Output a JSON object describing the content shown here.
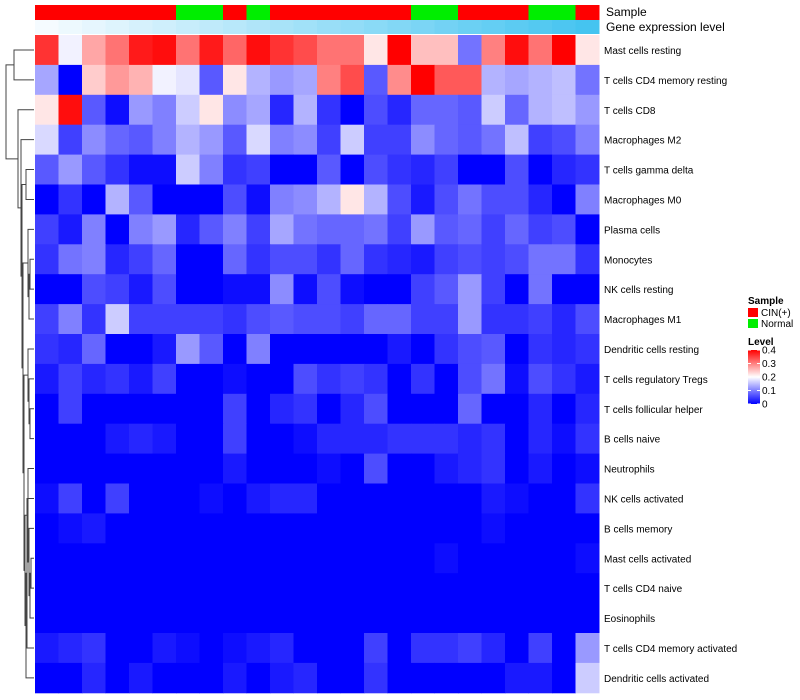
{
  "chart_data": {
    "type": "heatmap",
    "annotation_tracks": [
      "Sample",
      "Gene expression level"
    ],
    "rows": [
      "Mast cells resting",
      "T cells CD4 memory resting",
      "T cells CD8",
      "Macrophages M2",
      "T cells gamma delta",
      "Macrophages M0",
      "Plasma cells",
      "Monocytes",
      "NK cells resting",
      "Macrophages M1",
      "Dendritic cells resting",
      "T cells regulatory  Tregs",
      "T cells follicular helper",
      "B cells naive",
      "Neutrophils",
      "NK cells activated",
      "B cells memory",
      "Mast cells activated",
      "T cells CD4 naive",
      "Eosinophils",
      "T cells CD4 memory activated",
      "Dendritic cells activated"
    ],
    "sample_groups": [
      "CIN(+)",
      "CIN(+)",
      "CIN(+)",
      "CIN(+)",
      "CIN(+)",
      "CIN(+)",
      "Normal",
      "Normal",
      "CIN(+)",
      "Normal",
      "CIN(+)",
      "CIN(+)",
      "CIN(+)",
      "CIN(+)",
      "CIN(+)",
      "CIN(+)",
      "Normal",
      "Normal",
      "CIN(+)",
      "CIN(+)",
      "CIN(+)",
      "Normal",
      "Normal",
      "CIN(+)"
    ],
    "sample_colors": {
      "CIN(+)": "#ff0000",
      "Normal": "#00ee00"
    },
    "expression_gradient": {
      "low": "#f5fbff",
      "high": "#45c4f0"
    },
    "values": [
      [
        0.36,
        0.19,
        0.27,
        0.31,
        0.38,
        0.39,
        0.31,
        0.38,
        0.32,
        0.39,
        0.36,
        0.34,
        0.31,
        0.31,
        0.22,
        0.4,
        0.25,
        0.25,
        0.09,
        0.3,
        0.39,
        0.31,
        0.4,
        0.22
      ],
      [
        0.13,
        0.0,
        0.24,
        0.28,
        0.26,
        0.19,
        0.18,
        0.07,
        0.22,
        0.14,
        0.12,
        0.13,
        0.3,
        0.34,
        0.07,
        0.29,
        0.4,
        0.33,
        0.33,
        0.14,
        0.13,
        0.14,
        0.15,
        0.09
      ],
      [
        0.22,
        0.39,
        0.07,
        0.01,
        0.12,
        0.1,
        0.16,
        0.22,
        0.11,
        0.13,
        0.03,
        0.14,
        0.04,
        0.0,
        0.06,
        0.03,
        0.08,
        0.08,
        0.07,
        0.16,
        0.08,
        0.14,
        0.15,
        0.12
      ],
      [
        0.17,
        0.05,
        0.11,
        0.08,
        0.07,
        0.1,
        0.14,
        0.12,
        0.07,
        0.17,
        0.1,
        0.11,
        0.05,
        0.16,
        0.05,
        0.05,
        0.11,
        0.08,
        0.07,
        0.09,
        0.15,
        0.05,
        0.06,
        0.1
      ],
      [
        0.07,
        0.12,
        0.07,
        0.04,
        0.01,
        0.01,
        0.16,
        0.1,
        0.04,
        0.05,
        0.0,
        0.0,
        0.07,
        0.0,
        0.06,
        0.04,
        0.03,
        0.05,
        0.0,
        0.0,
        0.06,
        0.0,
        0.03,
        0.04
      ],
      [
        0.0,
        0.04,
        0.0,
        0.14,
        0.07,
        0.0,
        0.0,
        0.0,
        0.06,
        0.01,
        0.1,
        0.11,
        0.14,
        0.22,
        0.14,
        0.06,
        0.02,
        0.06,
        0.09,
        0.06,
        0.06,
        0.03,
        0.0,
        0.1
      ],
      [
        0.05,
        0.02,
        0.1,
        0.0,
        0.1,
        0.12,
        0.03,
        0.07,
        0.1,
        0.05,
        0.13,
        0.09,
        0.08,
        0.08,
        0.09,
        0.05,
        0.12,
        0.07,
        0.08,
        0.05,
        0.08,
        0.05,
        0.06,
        0.0
      ],
      [
        0.04,
        0.09,
        0.1,
        0.03,
        0.05,
        0.08,
        0.0,
        0.0,
        0.08,
        0.04,
        0.06,
        0.06,
        0.04,
        0.08,
        0.04,
        0.03,
        0.02,
        0.05,
        0.06,
        0.05,
        0.06,
        0.09,
        0.09,
        0.04
      ],
      [
        0.0,
        0.0,
        0.06,
        0.05,
        0.02,
        0.06,
        0.0,
        0.0,
        0.01,
        0.01,
        0.11,
        0.01,
        0.06,
        0.01,
        0.0,
        0.0,
        0.05,
        0.07,
        0.12,
        0.05,
        0.0,
        0.09,
        0.0,
        0.0
      ],
      [
        0.05,
        0.1,
        0.04,
        0.16,
        0.05,
        0.05,
        0.05,
        0.05,
        0.04,
        0.06,
        0.07,
        0.06,
        0.06,
        0.05,
        0.08,
        0.08,
        0.05,
        0.05,
        0.12,
        0.04,
        0.04,
        0.05,
        0.03,
        0.06
      ],
      [
        0.04,
        0.03,
        0.08,
        0.0,
        0.0,
        0.02,
        0.12,
        0.07,
        0.0,
        0.1,
        0.0,
        0.0,
        0.0,
        0.0,
        0.0,
        0.02,
        0.0,
        0.04,
        0.06,
        0.07,
        0.0,
        0.04,
        0.03,
        0.04
      ],
      [
        0.02,
        0.05,
        0.03,
        0.04,
        0.02,
        0.05,
        0.0,
        0.0,
        0.01,
        0.0,
        0.0,
        0.06,
        0.04,
        0.05,
        0.04,
        0.0,
        0.04,
        0.0,
        0.06,
        0.09,
        0.01,
        0.06,
        0.04,
        0.02
      ],
      [
        0.0,
        0.05,
        0.0,
        0.0,
        0.0,
        0.0,
        0.0,
        0.0,
        0.05,
        0.0,
        0.03,
        0.04,
        0.0,
        0.03,
        0.06,
        0.0,
        0.0,
        0.0,
        0.08,
        0.0,
        0.0,
        0.03,
        0.0,
        0.03
      ],
      [
        0.0,
        0.0,
        0.0,
        0.02,
        0.03,
        0.02,
        0.0,
        0.0,
        0.05,
        0.0,
        0.0,
        0.01,
        0.03,
        0.03,
        0.03,
        0.04,
        0.04,
        0.04,
        0.03,
        0.04,
        0.0,
        0.03,
        0.01,
        0.04
      ],
      [
        0.0,
        0.0,
        0.0,
        0.0,
        0.0,
        0.0,
        0.0,
        0.0,
        0.02,
        0.0,
        0.0,
        0.0,
        0.01,
        0.0,
        0.06,
        0.0,
        0.0,
        0.02,
        0.03,
        0.04,
        0.0,
        0.02,
        0.0,
        0.01
      ],
      [
        0.01,
        0.05,
        0.0,
        0.05,
        0.0,
        0.0,
        0.0,
        0.01,
        0.0,
        0.02,
        0.03,
        0.03,
        0.0,
        0.0,
        0.0,
        0.0,
        0.0,
        0.0,
        0.0,
        0.02,
        0.01,
        0.0,
        0.0,
        0.04
      ],
      [
        0.0,
        0.01,
        0.02,
        0.0,
        0.0,
        0.0,
        0.0,
        0.0,
        0.0,
        0.0,
        0.0,
        0.0,
        0.0,
        0.0,
        0.0,
        0.0,
        0.0,
        0.0,
        0.0,
        0.01,
        0.0,
        0.0,
        0.0,
        0.0
      ],
      [
        0.0,
        0.0,
        0.0,
        0.0,
        0.0,
        0.0,
        0.0,
        0.0,
        0.0,
        0.0,
        0.0,
        0.0,
        0.0,
        0.0,
        0.0,
        0.0,
        0.0,
        0.01,
        0.0,
        0.0,
        0.0,
        0.0,
        0.0,
        0.01
      ],
      [
        0.0,
        0.0,
        0.0,
        0.0,
        0.0,
        0.0,
        0.0,
        0.0,
        0.0,
        0.0,
        0.0,
        0.0,
        0.0,
        0.0,
        0.0,
        0.0,
        0.0,
        0.0,
        0.0,
        0.0,
        0.0,
        0.0,
        0.0,
        0.0
      ],
      [
        0.0,
        0.0,
        0.0,
        0.0,
        0.0,
        0.0,
        0.0,
        0.0,
        0.0,
        0.0,
        0.0,
        0.0,
        0.0,
        0.0,
        0.0,
        0.0,
        0.0,
        0.0,
        0.0,
        0.0,
        0.0,
        0.0,
        0.0,
        0.0
      ],
      [
        0.02,
        0.03,
        0.04,
        0.0,
        0.0,
        0.02,
        0.01,
        0.0,
        0.01,
        0.02,
        0.03,
        0.0,
        0.0,
        0.0,
        0.05,
        0.0,
        0.04,
        0.04,
        0.05,
        0.03,
        0.0,
        0.05,
        0.0,
        0.12
      ],
      [
        0.0,
        0.0,
        0.03,
        0.0,
        0.02,
        0.0,
        0.0,
        0.0,
        0.02,
        0.0,
        0.02,
        0.03,
        0.0,
        0.0,
        0.04,
        0.0,
        0.0,
        0.0,
        0.0,
        0.0,
        0.02,
        0.02,
        0.0,
        0.16
      ]
    ],
    "color_scale": {
      "min": 0,
      "max": 0.4,
      "low": "#0000ff",
      "mid": "#ffffff",
      "high": "#ff0000",
      "midpoint": 0.2
    },
    "legend": {
      "sample_title": "Sample",
      "sample_entries": [
        {
          "label": "CIN(+)",
          "color": "#ff0000"
        },
        {
          "label": "Normal",
          "color": "#00ee00"
        }
      ],
      "level_title": "Level",
      "level_ticks": [
        {
          "value": 0.4,
          "label": "0.4"
        },
        {
          "value": 0.3,
          "label": "0.3"
        },
        {
          "value": 0.2,
          "label": "0.2"
        },
        {
          "value": 0.1,
          "label": "0.1"
        },
        {
          "value": 0,
          "label": "0"
        }
      ]
    }
  }
}
